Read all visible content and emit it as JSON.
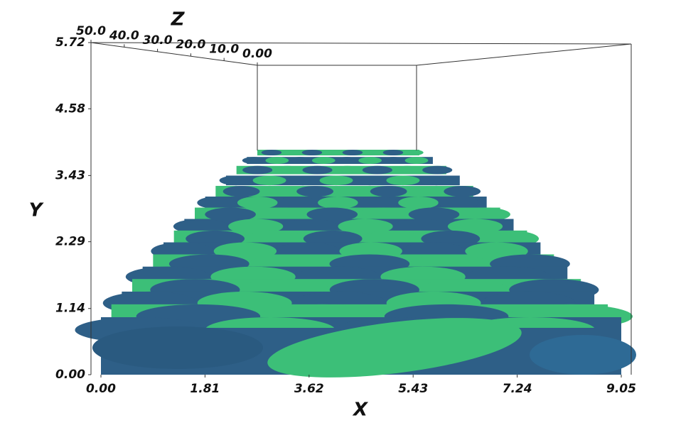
{
  "chart_data": {
    "type": "surface3d",
    "x_label": "X",
    "y_label": "Y",
    "z_label": "Z",
    "xlim": [
      0,
      9.05
    ],
    "ylim": [
      0,
      5.72
    ],
    "zlim": [
      0,
      50
    ],
    "xticks": [
      {
        "value": 0,
        "label": "0.00"
      },
      {
        "value": 1.81,
        "label": "1.81"
      },
      {
        "value": 3.62,
        "label": "3.62"
      },
      {
        "value": 5.43,
        "label": "5.43"
      },
      {
        "value": 7.24,
        "label": "7.24"
      },
      {
        "value": 9.05,
        "label": "9.05"
      }
    ],
    "yticks": [
      {
        "value": 0,
        "label": "0.00"
      },
      {
        "value": 1.14,
        "label": "1.14"
      },
      {
        "value": 2.29,
        "label": "2.29"
      },
      {
        "value": 3.43,
        "label": "3.43"
      },
      {
        "value": 4.58,
        "label": "4.58"
      },
      {
        "value": 5.72,
        "label": "5.72"
      }
    ],
    "zticks": [
      {
        "value": 50,
        "label": "50.0"
      },
      {
        "value": 40,
        "label": "40.0"
      },
      {
        "value": 30,
        "label": "30.0"
      },
      {
        "value": 20,
        "label": "20.0"
      },
      {
        "value": 10,
        "label": "10.0"
      },
      {
        "value": 0,
        "label": "0.00"
      }
    ],
    "colors": [
      "#2e5f87",
      "#3cbf78"
    ]
  }
}
